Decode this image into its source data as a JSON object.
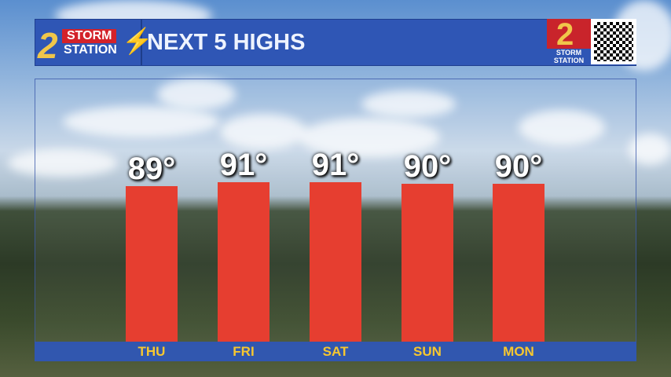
{
  "header": {
    "logo_number": "2",
    "logo_storm": "STORM",
    "logo_station": "STATION",
    "title": "NEXT 5 HIGHS"
  },
  "brand": {
    "number": "2",
    "text": "STORM STATION"
  },
  "colors": {
    "bar": "#e63e30",
    "header": "#2f56b5",
    "label": "#f7c72f"
  },
  "icons": {
    "logo": "lightning-bolt-icon",
    "qr": "qr-code-icon"
  },
  "chart_data": {
    "type": "bar",
    "title": "NEXT 5 HIGHS",
    "categories": [
      "THU",
      "FRI",
      "SAT",
      "SUN",
      "MON"
    ],
    "values": [
      89,
      91,
      91,
      90,
      90
    ],
    "value_labels": [
      "89°",
      "91°",
      "91°",
      "90°",
      "90°"
    ],
    "unit": "°F",
    "grid": false
  }
}
